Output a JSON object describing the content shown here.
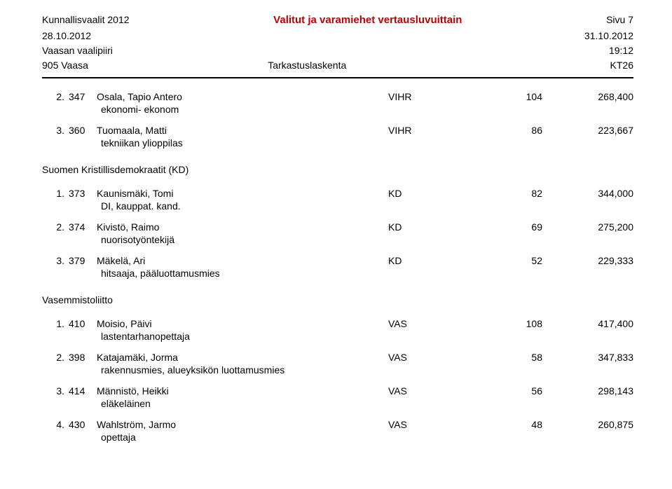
{
  "header": {
    "election": "Kunnallisvaalit 2012",
    "title": "Valitut ja varamiehet vertausluvuittain",
    "page": "Sivu 7",
    "date_left": "28.10.2012",
    "date_right": "31.10.2012",
    "constituency": "Vaasan vaalipiiri",
    "time": "19:12",
    "municipality": "905 Vaasa",
    "count_type": "Tarkastuslaskenta",
    "code": "KT26"
  },
  "groups": [
    {
      "heading": null,
      "entries": [
        {
          "idx": "2.",
          "cand": "347",
          "name": "Osala, Tapio Antero",
          "party": "VIHR",
          "votes": "104",
          "cmp": "268,400",
          "occupation": "ekonomi- ekonom"
        },
        {
          "idx": "3.",
          "cand": "360",
          "name": "Tuomaala, Matti",
          "party": "VIHR",
          "votes": "86",
          "cmp": "223,667",
          "occupation": "tekniikan ylioppilas"
        }
      ]
    },
    {
      "heading": "Suomen Kristillisdemokraatit (KD)",
      "entries": [
        {
          "idx": "1.",
          "cand": "373",
          "name": "Kaunismäki, Tomi",
          "party": "KD",
          "votes": "82",
          "cmp": "344,000",
          "occupation": "DI, kauppat. kand."
        },
        {
          "idx": "2.",
          "cand": "374",
          "name": "Kivistö, Raimo",
          "party": "KD",
          "votes": "69",
          "cmp": "275,200",
          "occupation": "nuorisotyöntekijä"
        },
        {
          "idx": "3.",
          "cand": "379",
          "name": "Mäkelä, Ari",
          "party": "KD",
          "votes": "52",
          "cmp": "229,333",
          "occupation": "hitsaaja, pääluottamusmies"
        }
      ]
    },
    {
      "heading": "Vasemmistoliitto",
      "entries": [
        {
          "idx": "1.",
          "cand": "410",
          "name": "Moisio, Päivi",
          "party": "VAS",
          "votes": "108",
          "cmp": "417,400",
          "occupation": "lastentarhanopettaja"
        },
        {
          "idx": "2.",
          "cand": "398",
          "name": "Katajamäki, Jorma",
          "party": "VAS",
          "votes": "58",
          "cmp": "347,833",
          "occupation": "rakennusmies, alueyksikön luottamusmies"
        },
        {
          "idx": "3.",
          "cand": "414",
          "name": "Männistö, Heikki",
          "party": "VAS",
          "votes": "56",
          "cmp": "298,143",
          "occupation": "eläkeläinen"
        },
        {
          "idx": "4.",
          "cand": "430",
          "name": "Wahlström, Jarmo",
          "party": "VAS",
          "votes": "48",
          "cmp": "260,875",
          "occupation": "opettaja"
        }
      ]
    }
  ]
}
